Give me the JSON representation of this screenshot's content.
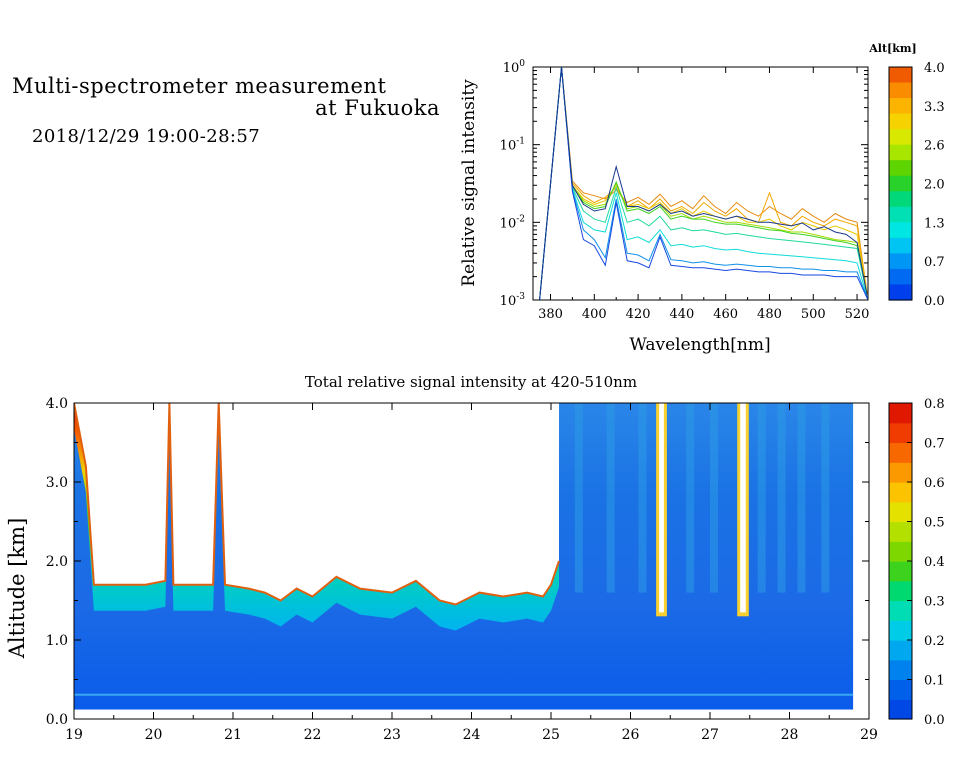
{
  "header": {
    "title_line1": "Multi-spectrometer measurement",
    "title_line2": "at Fukuoka",
    "datetime": "2018/12/29 19:00-28:57"
  },
  "chart_data": [
    {
      "type": "line",
      "ylabel": "Relative signal intensity",
      "xlabel": "Wavelength[nm]",
      "yscale": "log",
      "xlim": [
        372,
        525
      ],
      "ylim": [
        0.001,
        1
      ],
      "xticks": [
        380,
        400,
        420,
        440,
        460,
        480,
        500,
        520
      ],
      "yticks": [
        {
          "value": 1,
          "base": "10",
          "exp": "0"
        },
        {
          "value": 0.1,
          "base": "10",
          "exp": "-1"
        },
        {
          "value": 0.01,
          "base": "10",
          "exp": "-2"
        },
        {
          "value": 0.001,
          "base": "10",
          "exp": "-3"
        }
      ],
      "x": [
        375,
        385,
        390,
        395,
        400,
        405,
        410,
        415,
        420,
        425,
        430,
        435,
        440,
        445,
        450,
        455,
        460,
        465,
        470,
        475,
        480,
        485,
        490,
        495,
        500,
        505,
        510,
        515,
        520,
        525
      ],
      "colorbar": {
        "label": "Alt[km]",
        "ticks": [
          "4.0",
          "3.3",
          "2.6",
          "2.0",
          "1.3",
          "0.7",
          "0.0"
        ],
        "colors": [
          "#f05a00",
          "#fa8c00",
          "#fcb400",
          "#f5d200",
          "#d8e800",
          "#a8e600",
          "#5ed400",
          "#28d22a",
          "#00d87a",
          "#00e0b4",
          "#00e6e2",
          "#00c4f2",
          "#0096f5",
          "#006af2",
          "#0040ec"
        ]
      },
      "series": [
        {
          "color": "#e88a10",
          "values": [
            0.001,
            1.0,
            0.034,
            0.024,
            0.022,
            0.02,
            0.026,
            0.018,
            0.021,
            0.017,
            0.023,
            0.016,
            0.019,
            0.015,
            0.022,
            0.016,
            0.013,
            0.018,
            0.014,
            0.012,
            0.016,
            0.013,
            0.011,
            0.015,
            0.012,
            0.01,
            0.013,
            0.011,
            0.01,
            0.001
          ]
        },
        {
          "color": "#f0a800",
          "values": [
            0.001,
            1.0,
            0.032,
            0.022,
            0.018,
            0.021,
            0.028,
            0.016,
            0.019,
            0.015,
            0.02,
            0.014,
            0.016,
            0.013,
            0.018,
            0.014,
            0.012,
            0.015,
            0.011,
            0.01,
            0.024,
            0.01,
            0.009,
            0.012,
            0.01,
            0.009,
            0.011,
            0.01,
            0.009,
            0.001
          ]
        },
        {
          "color": "#e8c800",
          "values": [
            0.001,
            1.0,
            0.03,
            0.02,
            0.017,
            0.019,
            0.03,
            0.016,
            0.017,
            0.015,
            0.018,
            0.013,
            0.015,
            0.012,
            0.014,
            0.012,
            0.011,
            0.012,
            0.01,
            0.01,
            0.011,
            0.009,
            0.008,
            0.01,
            0.009,
            0.008,
            0.009,
            0.008,
            0.007,
            0.001
          ]
        },
        {
          "color": "#a0dc00",
          "values": [
            0.001,
            1.0,
            0.03,
            0.019,
            0.016,
            0.017,
            0.032,
            0.015,
            0.016,
            0.014,
            0.017,
            0.012,
            0.013,
            0.011,
            0.012,
            0.011,
            0.01,
            0.01,
            0.0095,
            0.009,
            0.0085,
            0.008,
            0.0075,
            0.0075,
            0.007,
            0.0065,
            0.006,
            0.0058,
            0.0055,
            0.001
          ]
        },
        {
          "color": "#40d020",
          "values": [
            0.001,
            1.0,
            0.029,
            0.018,
            0.015,
            0.016,
            0.033,
            0.014,
            0.015,
            0.013,
            0.016,
            0.011,
            0.012,
            0.011,
            0.011,
            0.01,
            0.0095,
            0.0095,
            0.009,
            0.0085,
            0.008,
            0.0078,
            0.0072,
            0.007,
            0.0066,
            0.0062,
            0.0058,
            0.0055,
            0.005,
            0.001
          ]
        },
        {
          "color": "#20d8a0",
          "values": [
            0.001,
            1.0,
            0.028,
            0.014,
            0.011,
            0.01,
            0.028,
            0.01,
            0.011,
            0.009,
            0.012,
            0.008,
            0.0085,
            0.0078,
            0.008,
            0.0075,
            0.007,
            0.0072,
            0.0068,
            0.0065,
            0.0062,
            0.006,
            0.0058,
            0.0056,
            0.0054,
            0.0052,
            0.005,
            0.0048,
            0.0046,
            0.001
          ]
        },
        {
          "color": "#10dcd8",
          "values": [
            0.001,
            1.0,
            0.027,
            0.01,
            0.008,
            0.0075,
            0.024,
            0.006,
            0.0065,
            0.0055,
            0.008,
            0.005,
            0.0052,
            0.0048,
            0.005,
            0.0046,
            0.0044,
            0.0045,
            0.0042,
            0.004,
            0.0039,
            0.0038,
            0.0037,
            0.0036,
            0.0035,
            0.0034,
            0.0033,
            0.0032,
            0.003,
            0.001
          ]
        },
        {
          "color": "#1090e8",
          "values": [
            0.001,
            1.0,
            0.026,
            0.008,
            0.006,
            0.0035,
            0.02,
            0.004,
            0.0038,
            0.0032,
            0.007,
            0.0033,
            0.0032,
            0.003,
            0.0031,
            0.0029,
            0.0028,
            0.0029,
            0.0028,
            0.0027,
            0.0027,
            0.0026,
            0.0026,
            0.0025,
            0.0025,
            0.0024,
            0.0024,
            0.0023,
            0.0023,
            0.001
          ]
        },
        {
          "color": "#1848e0",
          "values": [
            0.001,
            1.0,
            0.025,
            0.006,
            0.005,
            0.0028,
            0.018,
            0.0032,
            0.003,
            0.0026,
            0.0065,
            0.0028,
            0.0027,
            0.0026,
            0.0026,
            0.0025,
            0.0024,
            0.0025,
            0.0024,
            0.0023,
            0.0023,
            0.0022,
            0.0022,
            0.0021,
            0.0021,
            0.0021,
            0.002,
            0.002,
            0.002,
            0.001
          ]
        },
        {
          "color": "#1a3890",
          "values": [
            0.001,
            1.0,
            0.03,
            0.017,
            0.014,
            0.015,
            0.052,
            0.016,
            0.016,
            0.014,
            0.017,
            0.013,
            0.014,
            0.012,
            0.013,
            0.012,
            0.011,
            0.012,
            0.011,
            0.01,
            0.01,
            0.0095,
            0.009,
            0.0098,
            0.008,
            0.0088,
            0.0075,
            0.007,
            0.0055,
            0.001
          ]
        }
      ]
    },
    {
      "type": "heatmap",
      "title": "Total relative signal intensity at 420-510nm",
      "ylabel": "Altitude [km]",
      "xlabel": "",
      "xlim": [
        19,
        29
      ],
      "ylim": [
        0,
        4
      ],
      "xticks": [
        "19",
        "20",
        "21",
        "22",
        "23",
        "24",
        "25",
        "26",
        "27",
        "28",
        "29"
      ],
      "yticks": [
        "0.0",
        "1.0",
        "2.0",
        "3.0",
        "4.0"
      ],
      "data_end_hour": 28.8,
      "colorbar": {
        "ticks": [
          "0.0",
          "0.1",
          "0.2",
          "0.3",
          "0.4",
          "0.5",
          "0.6",
          "0.7",
          "0.8"
        ],
        "colors": [
          "#0048e6",
          "#0060ea",
          "#0082ee",
          "#00a8f0",
          "#00cce8",
          "#00dcb4",
          "#00d870",
          "#3cd21e",
          "#7ed800",
          "#b4e000",
          "#e4e000",
          "#fcc400",
          "#fc9800",
          "#f86800",
          "#f03c00",
          "#e01800"
        ]
      },
      "cloud_base_km": [
        {
          "t": 19.0,
          "base": 4.0
        },
        {
          "t": 19.15,
          "base": 3.2
        },
        {
          "t": 19.25,
          "base": 1.7
        },
        {
          "t": 19.9,
          "base": 1.7
        },
        {
          "t": 20.15,
          "base": 1.75
        },
        {
          "t": 20.2,
          "base": 4.0
        },
        {
          "t": 20.25,
          "base": 1.7
        },
        {
          "t": 20.75,
          "base": 1.7
        },
        {
          "t": 20.82,
          "base": 4.0
        },
        {
          "t": 20.9,
          "base": 1.7
        },
        {
          "t": 21.2,
          "base": 1.65
        },
        {
          "t": 21.4,
          "base": 1.6
        },
        {
          "t": 21.6,
          "base": 1.5
        },
        {
          "t": 21.8,
          "base": 1.65
        },
        {
          "t": 22.0,
          "base": 1.55
        },
        {
          "t": 22.3,
          "base": 1.8
        },
        {
          "t": 22.6,
          "base": 1.65
        },
        {
          "t": 23.0,
          "base": 1.6
        },
        {
          "t": 23.3,
          "base": 1.75
        },
        {
          "t": 23.6,
          "base": 1.5
        },
        {
          "t": 23.8,
          "base": 1.45
        },
        {
          "t": 24.1,
          "base": 1.6
        },
        {
          "t": 24.4,
          "base": 1.55
        },
        {
          "t": 24.7,
          "base": 1.6
        },
        {
          "t": 24.9,
          "base": 1.55
        },
        {
          "t": 25.0,
          "base": 1.7
        },
        {
          "t": 25.1,
          "base": 2.0
        }
      ],
      "clear_gap_hours": [
        [
          26.36,
          26.42
        ],
        [
          27.38,
          27.45
        ]
      ]
    }
  ]
}
